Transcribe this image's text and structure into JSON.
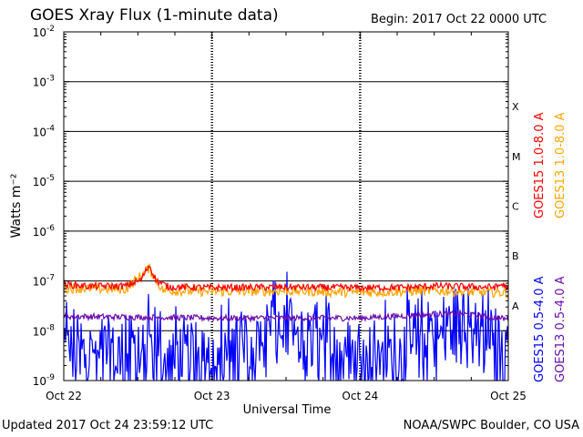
{
  "header": {
    "title": "GOES Xray Flux (1-minute data)",
    "begin": "Begin:  2017 Oct 22 0000 UTC"
  },
  "footer": {
    "updated": "Updated 2017 Oct 24 23:59:12 UTC",
    "credit": "NOAA/SWPC Boulder, CO USA"
  },
  "chart_data": {
    "type": "line",
    "title": "GOES Xray Flux (1-minute data)",
    "xlabel": "Universal Time",
    "ylabel": "Watts m⁻²",
    "y_scale": "log",
    "ylim": [
      1e-09,
      0.01
    ],
    "xlim": [
      "2017 Oct 22 00:00 UTC",
      "2017 Oct 25 00:00 UTC"
    ],
    "x_ticks": [
      "Oct 22",
      "Oct 23",
      "Oct 24",
      "Oct 25"
    ],
    "y_ticks": [
      {
        "base": "10",
        "exp": "-9"
      },
      {
        "base": "10",
        "exp": "-8"
      },
      {
        "base": "10",
        "exp": "-7"
      },
      {
        "base": "10",
        "exp": "-6"
      },
      {
        "base": "10",
        "exp": "-5"
      },
      {
        "base": "10",
        "exp": "-4"
      },
      {
        "base": "10",
        "exp": "-3"
      },
      {
        "base": "10",
        "exp": "-2"
      }
    ],
    "flare_classes": [
      {
        "label": "A",
        "value": 1e-08
      },
      {
        "label": "B",
        "value": 1e-07
      },
      {
        "label": "C",
        "value": 1e-06
      },
      {
        "label": "M",
        "value": 1e-05
      },
      {
        "label": "X",
        "value": 0.0001
      }
    ],
    "grid": true,
    "legend_placement": "right, rotated",
    "series": [
      {
        "name": "GOES15 1.0-8.0 A",
        "color": "#ff0000",
        "noise": 0.07,
        "points": [
          [
            "2017-10-22 00:00",
            8.5e-08
          ],
          [
            "2017-10-22 04:00",
            7.8e-08
          ],
          [
            "2017-10-22 10:00",
            7.9e-08
          ],
          [
            "2017-10-22 12:30",
            1.05e-07
          ],
          [
            "2017-10-22 13:50",
            2.1e-07
          ],
          [
            "2017-10-22 15:00",
            1e-07
          ],
          [
            "2017-10-22 17:00",
            7.6e-08
          ],
          [
            "2017-10-23 00:00",
            7.3e-08
          ],
          [
            "2017-10-23 12:00",
            7.5e-08
          ],
          [
            "2017-10-24 00:00",
            7.3e-08
          ],
          [
            "2017-10-24 08:00",
            7.4e-08
          ],
          [
            "2017-10-24 12:00",
            7.9e-08
          ],
          [
            "2017-10-24 18:00",
            7.6e-08
          ],
          [
            "2017-10-24 22:00",
            7.5e-08
          ],
          [
            "2017-10-24 23:00",
            8.6e-08
          ],
          [
            "2017-10-25 00:00",
            7e-08
          ]
        ]
      },
      {
        "name": "GOES13 1.0-8.0 A",
        "color": "#ffa500",
        "noise": 0.1,
        "points": [
          [
            "2017-10-22 00:00",
            7.2e-08
          ],
          [
            "2017-10-22 10:00",
            6.8e-08
          ],
          [
            "2017-10-22 13:50",
            1.8e-07
          ],
          [
            "2017-10-22 16:00",
            6.5e-08
          ],
          [
            "2017-10-23 00:00",
            6.1e-08
          ],
          [
            "2017-10-23 12:00",
            6.3e-08
          ],
          [
            "2017-10-24 00:00",
            5.9e-08
          ],
          [
            "2017-10-24 12:00",
            6.4e-08
          ],
          [
            "2017-10-24 18:00",
            6e-08
          ],
          [
            "2017-10-25 00:00",
            5.8e-08
          ]
        ]
      },
      {
        "name": "GOES15 0.5-4.0 A",
        "color": "#0000ff",
        "noise": 0.9,
        "points": [
          [
            "2017-10-22 00:00",
            3e-09
          ],
          [
            "2017-10-22 12:00",
            2.7e-09
          ],
          [
            "2017-10-23 00:00",
            2.4e-09
          ],
          [
            "2017-10-23 08:00",
            3.2e-09
          ],
          [
            "2017-10-23 11:00",
            1.1e-08
          ],
          [
            "2017-10-23 14:00",
            4.5e-09
          ],
          [
            "2017-10-23 20:00",
            2.8e-09
          ],
          [
            "2017-10-24 06:00",
            2.3e-09
          ],
          [
            "2017-10-24 10:00",
            4.5e-09
          ],
          [
            "2017-10-24 14:00",
            9e-09
          ],
          [
            "2017-10-24 16:00",
            1.2e-08
          ],
          [
            "2017-10-24 18:00",
            6.5e-09
          ],
          [
            "2017-10-24 20:00",
            8e-09
          ],
          [
            "2017-10-24 22:00",
            4e-09
          ],
          [
            "2017-10-25 00:00",
            3e-09
          ]
        ]
      },
      {
        "name": "GOES13 0.5-4.0 A",
        "color": "#6a0dad",
        "noise": 0.06,
        "points": [
          [
            "2017-10-22 00:00",
            1.95e-08
          ],
          [
            "2017-10-23 00:00",
            1.8e-08
          ],
          [
            "2017-10-24 00:00",
            1.8e-08
          ],
          [
            "2017-10-24 12:00",
            2.15e-08
          ],
          [
            "2017-10-24 16:00",
            2.2e-08
          ],
          [
            "2017-10-24 20:00",
            1.95e-08
          ],
          [
            "2017-10-25 00:00",
            1.7e-08
          ]
        ]
      }
    ]
  }
}
